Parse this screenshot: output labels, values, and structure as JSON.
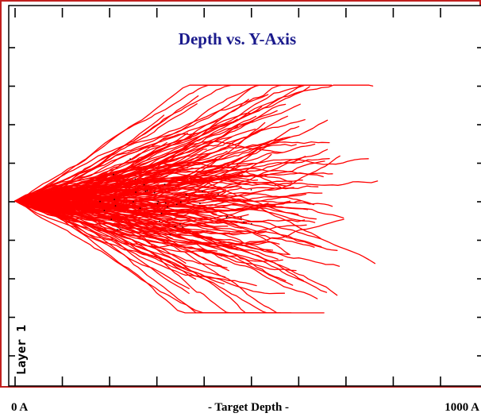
{
  "chart_data": {
    "type": "line",
    "title": "Depth vs. Y-Axis",
    "xlabel": "- Target Depth -",
    "x_tick_labels": {
      "start": "0 A",
      "end": "1000 A"
    },
    "layer_label": "Layer 1",
    "xlim": [
      0,
      1000
    ],
    "ylim": [
      -1,
      1
    ],
    "grid": false,
    "legend": "none",
    "colors": {
      "tracks": "#ff0000",
      "title": "#1a1a8c",
      "frame": "#c0201e",
      "axes": "#000000"
    },
    "series_description": "ion trajectories starting at x = 0, y = 0 and spreading with depth",
    "trajectory_count": 180,
    "max_depth_observed": 900,
    "max_lateral_spread": [
      -0.58,
      0.6
    ]
  }
}
